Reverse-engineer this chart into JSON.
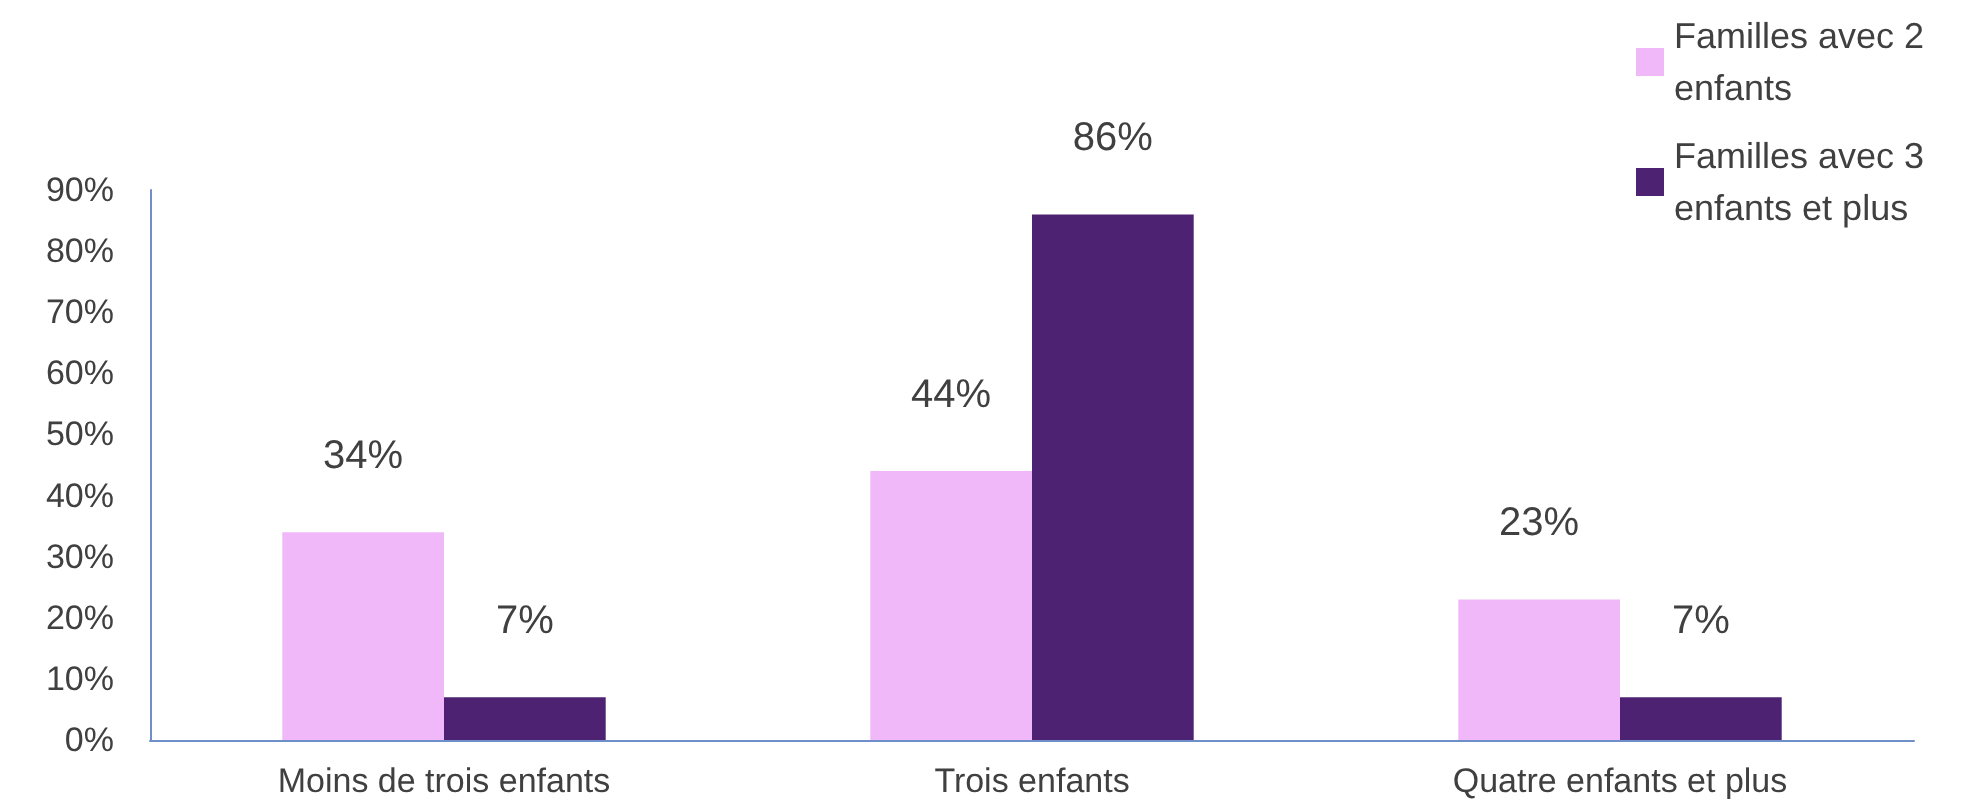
{
  "chart_data": {
    "type": "bar",
    "categories": [
      "Moins de trois enfants",
      "Trois enfants",
      "Quatre enfants et plus"
    ],
    "series": [
      {
        "name": "Familles avec 2 enfants",
        "color": "#f0b8f8",
        "values": [
          34,
          44,
          23
        ],
        "value_labels": [
          "34%",
          "44%",
          "23%"
        ]
      },
      {
        "name": "Familles avec 3 enfants et plus",
        "color": "#4e2272",
        "values": [
          7,
          86,
          7
        ],
        "value_labels": [
          "7%",
          "86%",
          "7%"
        ]
      }
    ],
    "ylim": [
      0,
      90
    ],
    "yticks": [
      {
        "value": 0,
        "label": "0%"
      },
      {
        "value": 10,
        "label": "10%"
      },
      {
        "value": 20,
        "label": "20%"
      },
      {
        "value": 30,
        "label": "30%"
      },
      {
        "value": 40,
        "label": "40%"
      },
      {
        "value": 50,
        "label": "50%"
      },
      {
        "value": 60,
        "label": "60%"
      },
      {
        "value": 70,
        "label": "70%"
      },
      {
        "value": 80,
        "label": "80%"
      },
      {
        "value": 90,
        "label": "90%"
      }
    ],
    "grid": false,
    "legend": "top right"
  }
}
